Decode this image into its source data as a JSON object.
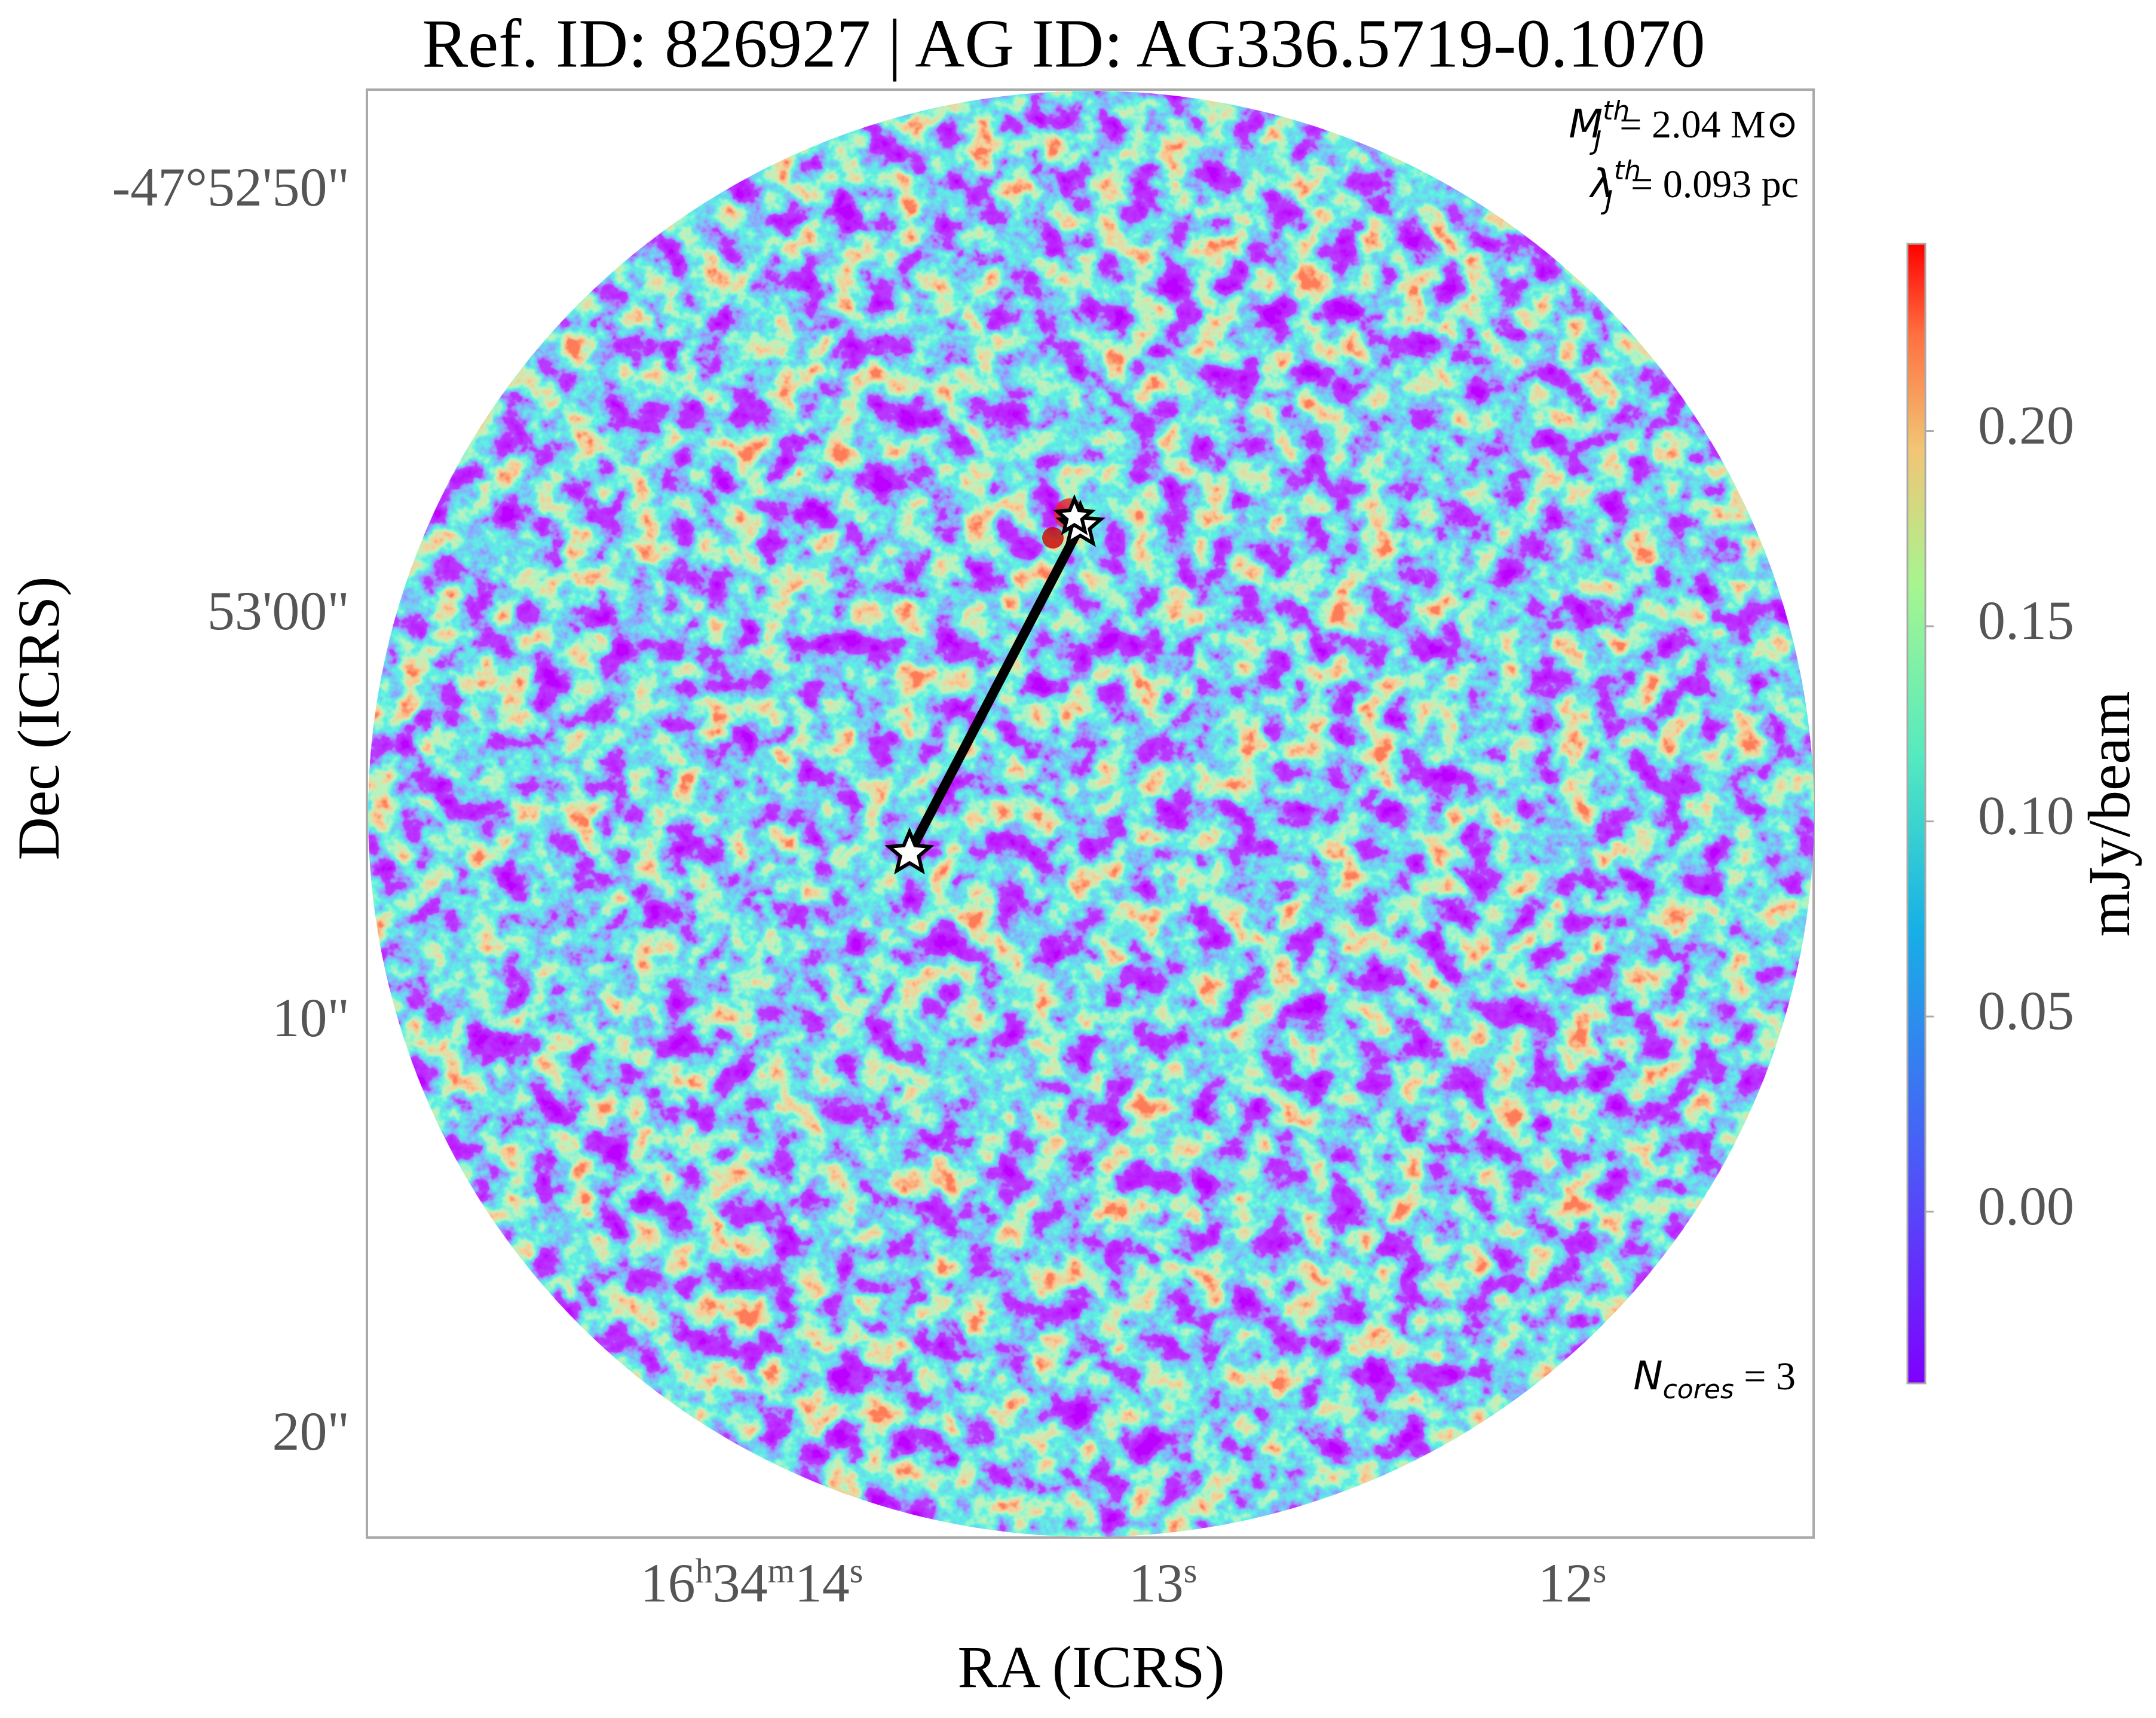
{
  "chart_data": {
    "type": "image",
    "title": "Ref. ID: 826927 | AG ID: AG336.5719-0.1070",
    "x_label": "RA (ICRS)",
    "y_label": "Dec (ICRS)",
    "xticks": [
      "16h34m14s",
      "13s",
      "12s"
    ],
    "yticks": [
      "-47°52'50\"",
      "53'00\"",
      "10\"",
      "20\""
    ],
    "colorbar": {
      "label": "mJy/beam",
      "clim": [
        -0.044,
        0.248
      ],
      "ticks": [
        {
          "value": 0,
          "label": "0.00"
        },
        {
          "value": 0.05,
          "label": "0.05"
        },
        {
          "value": 0.1,
          "label": "0.10"
        },
        {
          "value": 0.15,
          "label": "0.15"
        },
        {
          "value": 0.2,
          "label": "0.20"
        }
      ]
    },
    "annotations": {
      "mass": {
        "symbol": "M",
        "sub": "J",
        "sup": "th",
        "text": "= 2.04 M⊙"
      },
      "length": {
        "symbol": "λ",
        "sub": "J",
        "sup": "th",
        "text": "= 0.093 pc"
      },
      "cores": {
        "symbol": "N",
        "sub": "cores",
        "text": " = 3"
      }
    }
  }
}
